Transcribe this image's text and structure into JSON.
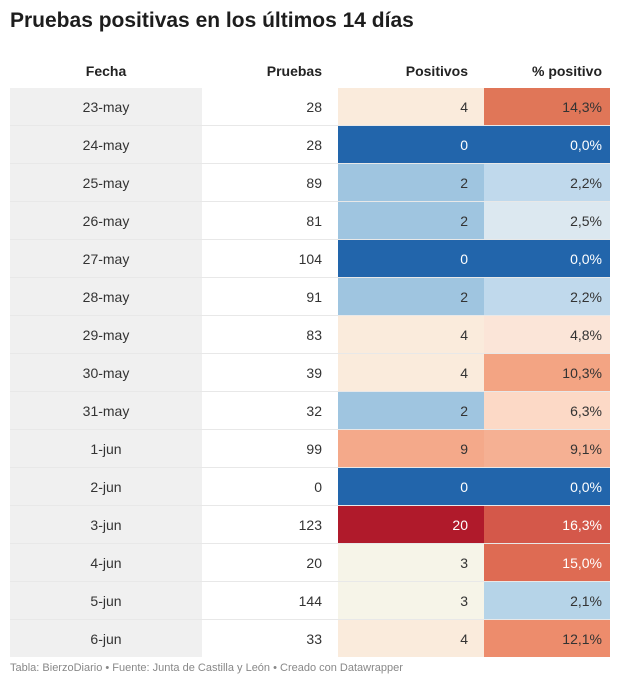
{
  "title": "Pruebas positivas en los últimos 14 días",
  "footer": "Tabla: BierzoDiario • Fuente: Junta de Castilla y León • Creado con Datawrapper",
  "chart_data": {
    "type": "table",
    "columns": [
      "Fecha",
      "Pruebas",
      "Positivos",
      "% positivo"
    ],
    "rows": [
      {
        "fecha": "23-may",
        "pruebas": "28",
        "positivos": "4",
        "pct": "14,3%",
        "pos_color": "#faebdc",
        "pct_color": "#e07658"
      },
      {
        "fecha": "24-may",
        "pruebas": "28",
        "positivos": "0",
        "pct": "0,0%",
        "pos_color": "#2265ab",
        "pct_color": "#2265ab"
      },
      {
        "fecha": "25-may",
        "pruebas": "89",
        "positivos": "2",
        "pct": "2,2%",
        "pos_color": "#9fc5e0",
        "pct_color": "#c0d9ec"
      },
      {
        "fecha": "26-may",
        "pruebas": "81",
        "positivos": "2",
        "pct": "2,5%",
        "pos_color": "#9fc5e0",
        "pct_color": "#dce8f0"
      },
      {
        "fecha": "27-may",
        "pruebas": "104",
        "positivos": "0",
        "pct": "0,0%",
        "pos_color": "#2265ab",
        "pct_color": "#2265ab"
      },
      {
        "fecha": "28-may",
        "pruebas": "91",
        "positivos": "2",
        "pct": "2,2%",
        "pos_color": "#9fc5e0",
        "pct_color": "#c0d9ec"
      },
      {
        "fecha": "29-may",
        "pruebas": "83",
        "positivos": "4",
        "pct": "4,8%",
        "pos_color": "#faebdc",
        "pct_color": "#fbe5d8"
      },
      {
        "fecha": "30-may",
        "pruebas": "39",
        "positivos": "4",
        "pct": "10,3%",
        "pos_color": "#faebdc",
        "pct_color": "#f3a483"
      },
      {
        "fecha": "31-may",
        "pruebas": "32",
        "positivos": "2",
        "pct": "6,3%",
        "pos_color": "#9fc5e0",
        "pct_color": "#fcd9c6"
      },
      {
        "fecha": "1-jun",
        "pruebas": "99",
        "positivos": "9",
        "pct": "9,1%",
        "pos_color": "#f4a98a",
        "pct_color": "#f5b093"
      },
      {
        "fecha": "2-jun",
        "pruebas": "0",
        "positivos": "0",
        "pct": "0,0%",
        "pos_color": "#2265ab",
        "pct_color": "#2265ab"
      },
      {
        "fecha": "3-jun",
        "pruebas": "123",
        "positivos": "20",
        "pct": "16,3%",
        "pos_color": "#b01a2b",
        "pct_color": "#d4584a"
      },
      {
        "fecha": "4-jun",
        "pruebas": "20",
        "positivos": "3",
        "pct": "15,0%",
        "pos_color": "#f6f4e8",
        "pct_color": "#de6b53"
      },
      {
        "fecha": "5-jun",
        "pruebas": "144",
        "positivos": "3",
        "pct": "2,1%",
        "pos_color": "#f6f4e8",
        "pct_color": "#b6d4e8"
      },
      {
        "fecha": "6-jun",
        "pruebas": "33",
        "positivos": "4",
        "pct": "12,1%",
        "pos_color": "#faebdc",
        "pct_color": "#ed8c6c"
      }
    ]
  }
}
